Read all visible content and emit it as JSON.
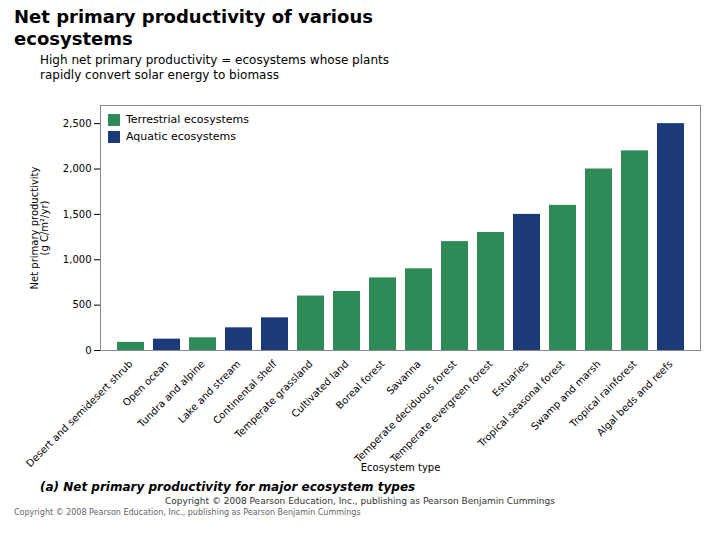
{
  "chart_data": {
    "type": "bar",
    "title": "Net primary productivity of various\necosystems",
    "subtitle": "High net primary productivity = ecosystems whose plants\nrapidly convert solar energy to biomass",
    "x_label": "Ecosystem type",
    "y_label": "Net primary productivity\n(g C/m²/yr)",
    "annotations": [
      "(a) Net primary productivity for major ecosystem types",
      "Copyright © 2008 Pearson Education, Inc., publishing as Pearson Benjamin Cummings",
      "Copyright © 2008 Pearson Education, Inc., publishing as Pearson Benjamin Cummings"
    ],
    "categories": [
      "Desert and semidesert shrub",
      "Open ocean",
      "Tundra and alpine",
      "Lake and stream",
      "Continental shelf",
      "Temperate grassland",
      "Cultivated land",
      "Boreal forest",
      "Savanna",
      "Temperate deciduous forest",
      "Temperate evergreen forest",
      "Estuaries",
      "Tropical seasonal forest",
      "Swamp and marsh",
      "Tropical rainforest",
      "Algal beds and reefs"
    ],
    "series": [
      {
        "name": "Terrestrial ecosystems",
        "color": "#2e8b57",
        "values": [
          90,
          null,
          140,
          null,
          null,
          600,
          650,
          800,
          900,
          1200,
          1300,
          null,
          1600,
          2000,
          2200,
          null
        ]
      },
      {
        "name": "Aquatic ecosystems",
        "color": "#1a3a7a",
        "values": [
          null,
          125,
          null,
          250,
          360,
          null,
          null,
          null,
          null,
          null,
          null,
          1500,
          null,
          null,
          null,
          2500
        ]
      }
    ],
    "ylim": [
      0,
      2700
    ],
    "yticks": [
      0,
      500,
      {
        "value": 1000,
        "label": "1,000"
      },
      {
        "value": 1500,
        "label": "1,500"
      },
      {
        "value": 2000,
        "label": "2,000"
      },
      {
        "value": 2500,
        "label": "2,500"
      }
    ],
    "legend": "upper left"
  }
}
